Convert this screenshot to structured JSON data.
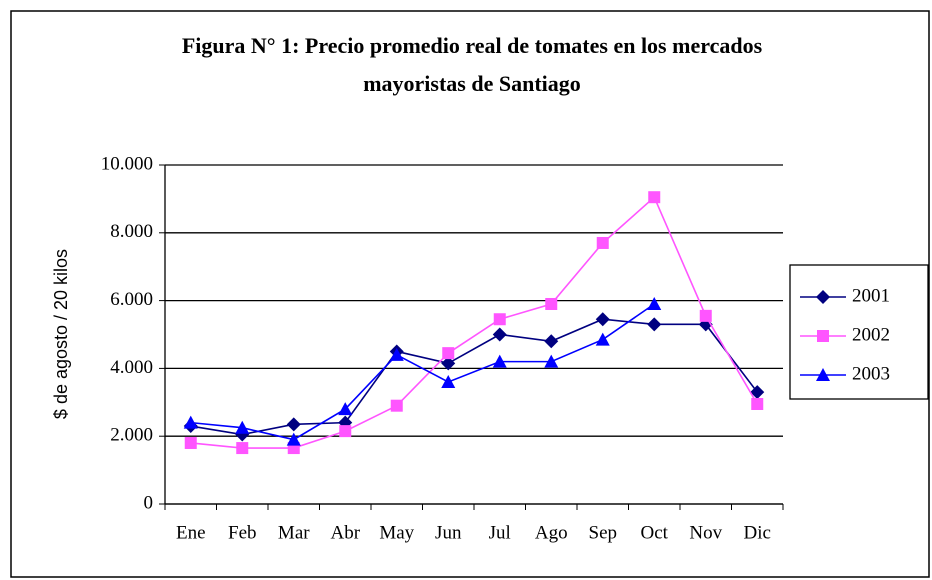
{
  "chart_data": {
    "type": "line",
    "title": [
      "Figura N° 1: Precio promedio real de tomates en los mercados",
      "mayoristas de Santiago"
    ],
    "y_label": "$ de agosto / 20 kilos",
    "categories": [
      "Ene",
      "Feb",
      "Mar",
      "Abr",
      "May",
      "Jun",
      "Jul",
      "Ago",
      "Sep",
      "Oct",
      "Nov",
      "Dic"
    ],
    "series": [
      {
        "name": "2001",
        "color": "#000080",
        "marker": "diamond",
        "values": [
          2300,
          2050,
          2350,
          2400,
          4500,
          4150,
          5000,
          4800,
          5450,
          5300,
          5300,
          3300
        ]
      },
      {
        "name": "2002",
        "color": "#ff55ff",
        "marker": "square",
        "values": [
          1800,
          1650,
          1650,
          2150,
          2900,
          4450,
          5450,
          5900,
          7700,
          9050,
          5550,
          2950
        ]
      },
      {
        "name": "2003",
        "color": "#0000ff",
        "marker": "triangle",
        "values": [
          2400,
          2250,
          1900,
          2800,
          4400,
          3600,
          4200,
          4200,
          4850,
          5900,
          null,
          null
        ]
      }
    ],
    "ylim": [
      0,
      10000
    ],
    "yticks": [
      0,
      {
        "value": 2000,
        "label": "2.000"
      },
      {
        "value": 4000,
        "label": "4.000"
      },
      {
        "value": 6000,
        "label": "6.000"
      },
      {
        "value": 8000,
        "label": "8.000"
      },
      {
        "value": 10000,
        "label": "10.000"
      }
    ],
    "grid": true,
    "legend": "right"
  }
}
